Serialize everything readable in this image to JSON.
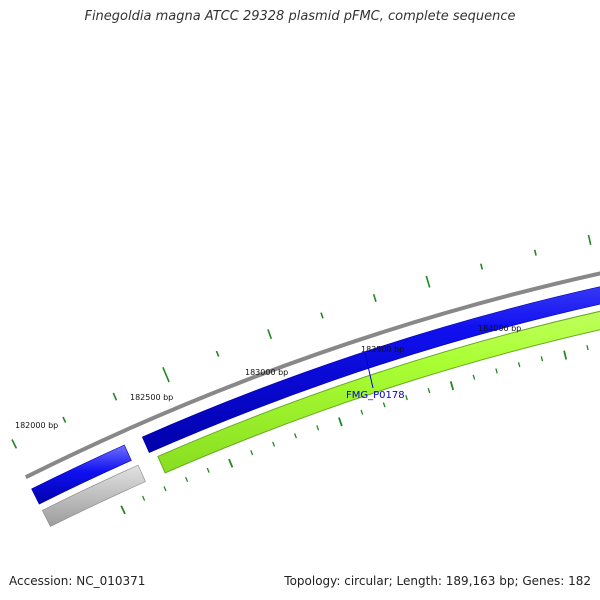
{
  "header": {
    "title": "Finegoldia magna ATCC 29328 plasmid pFMC, complete sequence"
  },
  "footer": {
    "accession": "Accession: NC_010371",
    "summary": "Topology: circular; Length: 189,163 bp; Genes: 182"
  },
  "map": {
    "tick_labels": [
      {
        "bp": 182000,
        "text": "182000 bp"
      },
      {
        "bp": 182500,
        "text": "182500 bp"
      },
      {
        "bp": 183000,
        "text": "183000 bp"
      },
      {
        "bp": 183500,
        "text": "183500 bp"
      },
      {
        "bp": 184000,
        "text": "184000 bp"
      }
    ],
    "gene_label": "FMG_P0178",
    "colors": {
      "backbone": "#888888",
      "forward_strand": "#0000ee",
      "reverse_strand": "#aaff33",
      "reverse_outline": "#66aa22",
      "gap_grey": "#bbbbbb",
      "gc_ticks": "#228822",
      "gene_label": "#0000cc"
    }
  }
}
